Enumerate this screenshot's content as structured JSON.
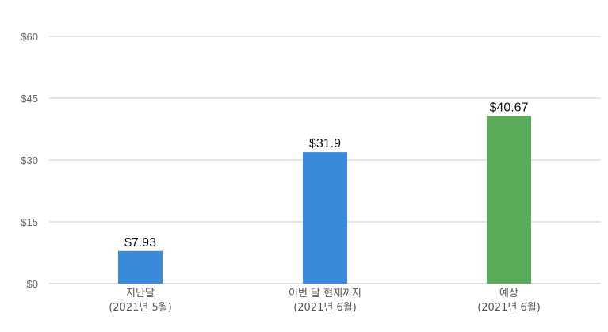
{
  "chart_data": {
    "type": "bar",
    "categories": [
      {
        "line1": "지난달",
        "line2": "(2021년 5월)"
      },
      {
        "line1": "이번 달 현재까지",
        "line2": "(2021년 6월)"
      },
      {
        "line1": "예상",
        "line2": "(2021년 6월)"
      }
    ],
    "values": [
      7.93,
      31.9,
      40.67
    ],
    "data_labels": [
      "$7.93",
      "$31.9",
      "$40.67"
    ],
    "bar_colors": [
      "#3b8ad9",
      "#3b8ad9",
      "#5aac5a"
    ],
    "ylim": [
      0,
      60
    ],
    "yticks": [
      {
        "value": 0,
        "label": "$0"
      },
      {
        "value": 15,
        "label": "$15"
      },
      {
        "value": 30,
        "label": "$30"
      },
      {
        "value": 45,
        "label": "$45"
      },
      {
        "value": 60,
        "label": "$60"
      }
    ],
    "grid": true,
    "gridline_color": "#cccccc",
    "legend": "none",
    "title": "",
    "xlabel": "",
    "ylabel": ""
  }
}
